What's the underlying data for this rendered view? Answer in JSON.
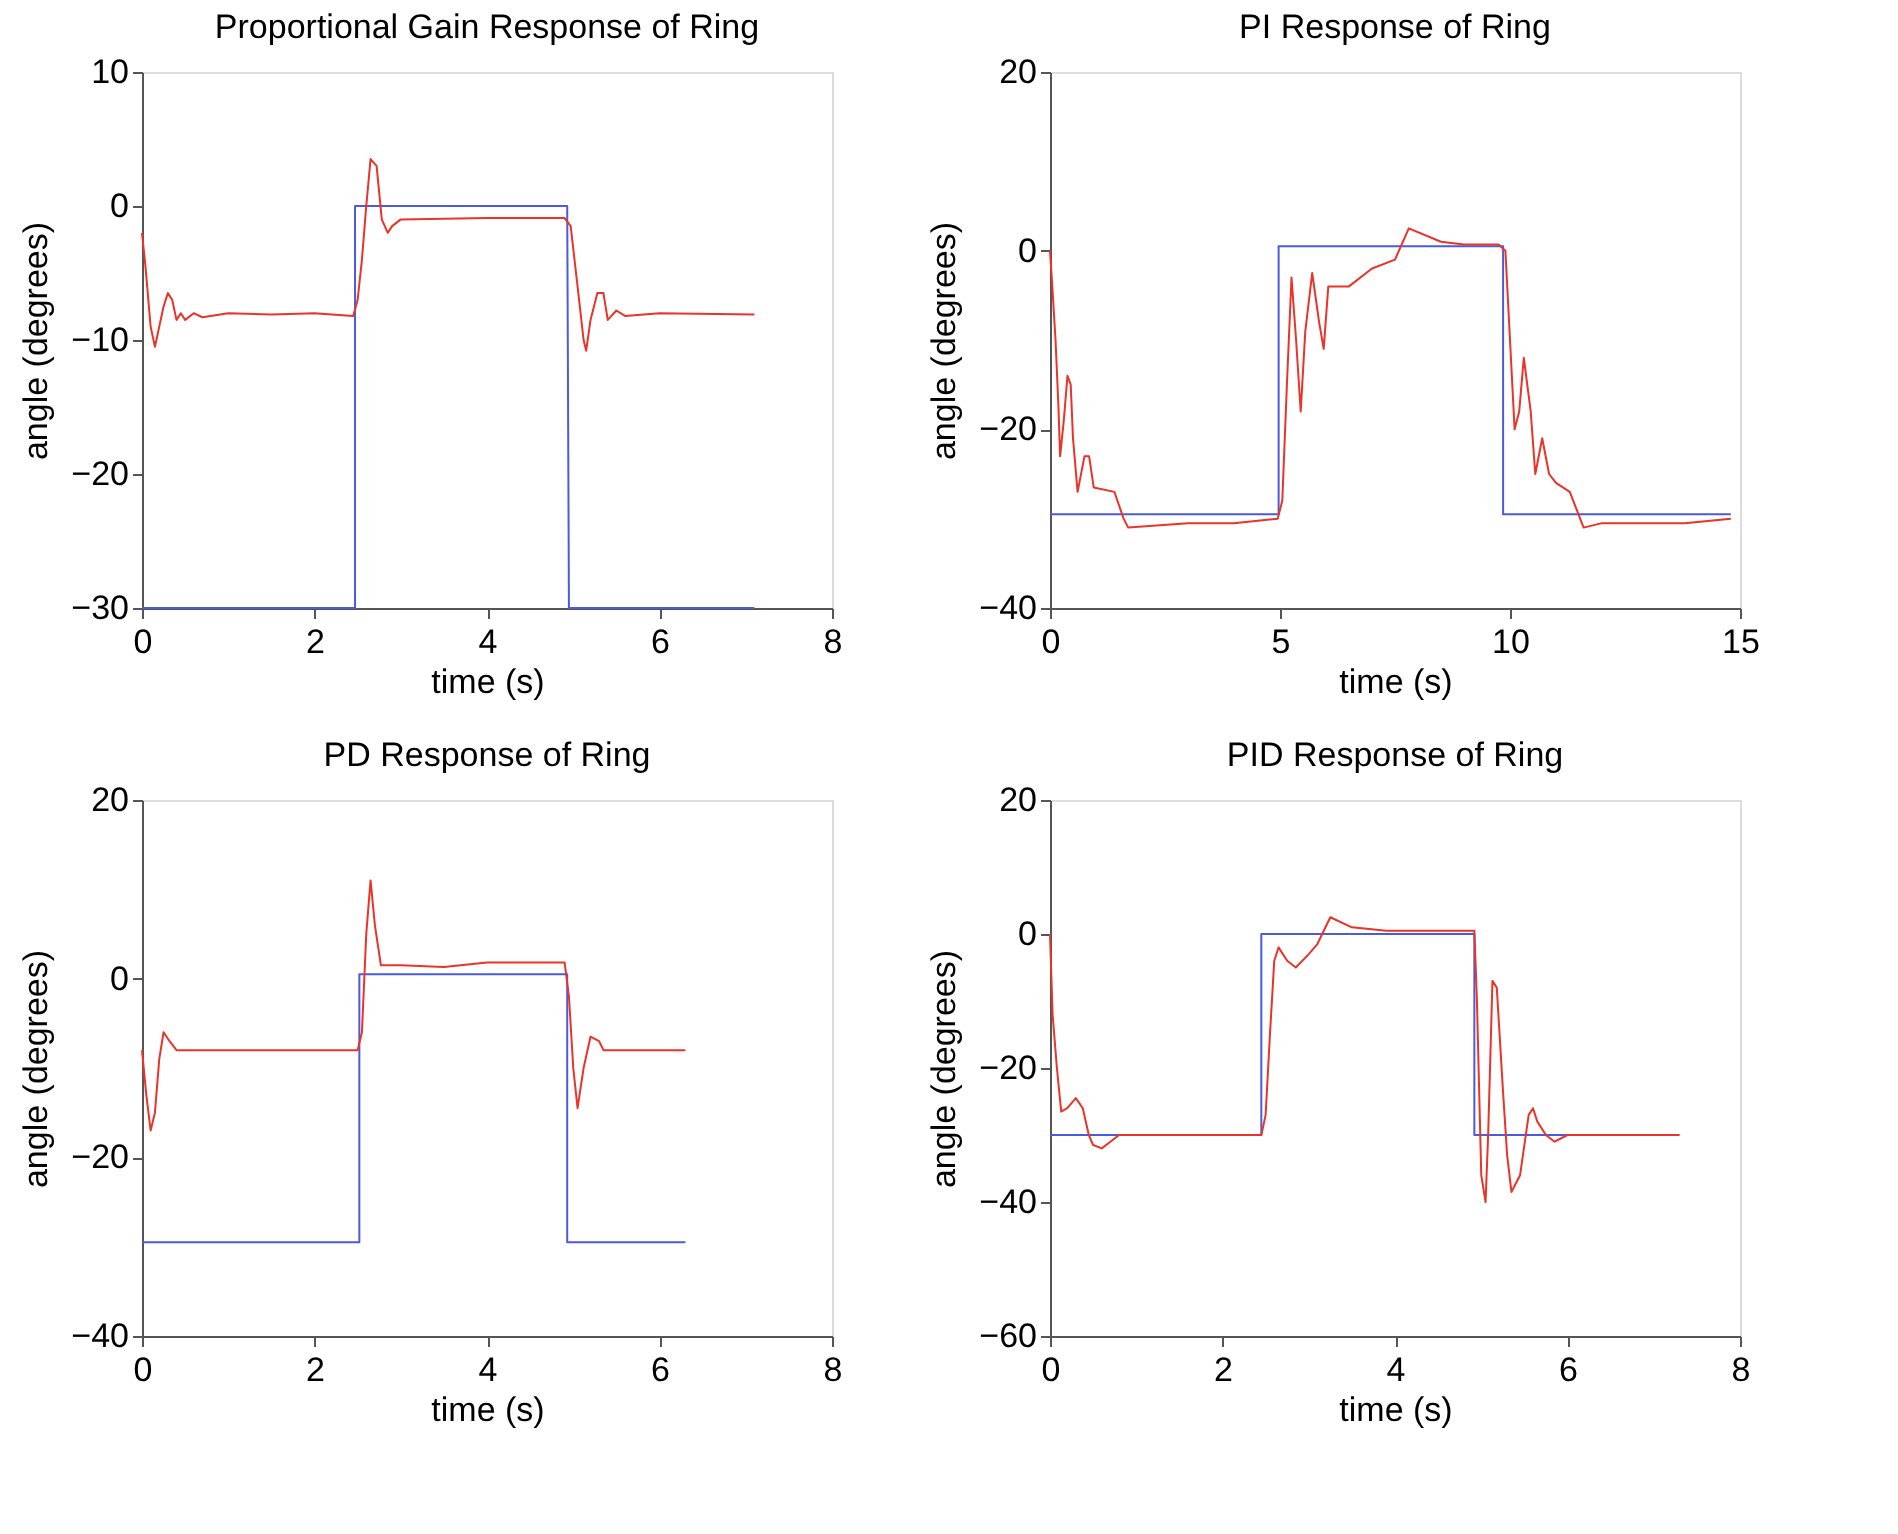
{
  "chart_data": [
    {
      "type": "line",
      "title": "Proportional Gain Response of Ring",
      "xlabel": "time (s)",
      "ylabel": "angle (degrees)",
      "xlim": [
        0,
        8
      ],
      "xticks": [
        0,
        2,
        4,
        6,
        8
      ],
      "ylim": [
        -30,
        10
      ],
      "yticks": [
        -30,
        -20,
        -10,
        0,
        10
      ],
      "grid": false,
      "series": [
        {
          "color": "#4a5bdc",
          "x": [
            0,
            2.47,
            2.47,
            4.93,
            4.95,
            7.1
          ],
          "values": [
            -30,
            -30,
            0,
            0,
            -30,
            -30
          ]
        },
        {
          "color": "#e8342a",
          "x": [
            0,
            0.04,
            0.1,
            0.15,
            0.2,
            0.25,
            0.3,
            0.35,
            0.4,
            0.45,
            0.5,
            0.6,
            0.7,
            1,
            1.5,
            2,
            2.45,
            2.5,
            2.55,
            2.6,
            2.65,
            2.72,
            2.78,
            2.85,
            2.9,
            3,
            4,
            4.9,
            4.97,
            5.05,
            5.12,
            5.15,
            5.2,
            5.28,
            5.35,
            5.4,
            5.5,
            5.6,
            6,
            7.1
          ],
          "values": [
            -2,
            -4.5,
            -9,
            -10.5,
            -9,
            -7.5,
            -6.5,
            -7,
            -8.5,
            -8,
            -8.5,
            -8,
            -8.3,
            -8,
            -8.1,
            -8,
            -8.2,
            -7,
            -4,
            0,
            3.5,
            3,
            -1,
            -2,
            -1.5,
            -1,
            -0.9,
            -0.9,
            -1.5,
            -6,
            -10,
            -10.8,
            -8.5,
            -6.5,
            -6.5,
            -8.5,
            -7.8,
            -8.2,
            -8,
            -8.1
          ]
        }
      ]
    },
    {
      "type": "line",
      "title": "PI Response of Ring",
      "xlabel": "time (s)",
      "ylabel": "angle (degrees)",
      "xlim": [
        0,
        15
      ],
      "xticks": [
        0,
        5,
        10,
        15
      ],
      "ylim": [
        -40,
        20
      ],
      "yticks": [
        -40,
        -20,
        0,
        20
      ],
      "grid": false,
      "series": [
        {
          "color": "#4a5bdc",
          "x": [
            0,
            4.97,
            4.97,
            9.85,
            9.85,
            14.8
          ],
          "values": [
            -29.5,
            -29.5,
            0.5,
            0.5,
            -29.5,
            -29.5
          ]
        },
        {
          "color": "#e8342a",
          "x": [
            0,
            0.05,
            0.12,
            0.18,
            0.22,
            0.3,
            0.38,
            0.45,
            0.5,
            0.6,
            0.75,
            0.85,
            0.95,
            1.4,
            1.6,
            1.7,
            3,
            4,
            4.95,
            5.05,
            5.15,
            5.25,
            5.35,
            5.45,
            5.55,
            5.7,
            5.85,
            5.95,
            6.05,
            6.5,
            7,
            7.5,
            7.8,
            8.5,
            9,
            9.75,
            9.9,
            10,
            10.1,
            10.2,
            10.3,
            10.45,
            10.55,
            10.7,
            10.85,
            11,
            11.3,
            11.6,
            12,
            13.8,
            14.8
          ],
          "values": [
            0,
            -4,
            -10,
            -17,
            -23,
            -19,
            -14,
            -15,
            -21,
            -27,
            -23,
            -23,
            -26.5,
            -27,
            -30,
            -31,
            -30.5,
            -30.5,
            -30,
            -28,
            -15,
            -3,
            -10,
            -18,
            -9,
            -2.5,
            -8,
            -11,
            -4,
            -4,
            -2,
            -1,
            2.5,
            1,
            0.7,
            0.7,
            0,
            -10,
            -20,
            -18,
            -12,
            -18,
            -25,
            -21,
            -25,
            -26,
            -27,
            -31,
            -30.5,
            -30.5,
            -30
          ]
        }
      ]
    },
    {
      "type": "line",
      "title": "PD Response of Ring",
      "xlabel": "time (s)",
      "ylabel": "angle (degrees)",
      "xlim": [
        0,
        8
      ],
      "xticks": [
        0,
        2,
        4,
        6,
        8
      ],
      "ylim": [
        -40,
        20
      ],
      "yticks": [
        -40,
        -20,
        0,
        20
      ],
      "grid": false,
      "series": [
        {
          "color": "#4a5bdc",
          "x": [
            0,
            2.52,
            2.52,
            4.93,
            4.93,
            6.3
          ],
          "values": [
            -29.5,
            -29.5,
            0.5,
            0.5,
            -29.5,
            -29.5
          ]
        },
        {
          "color": "#e8342a",
          "x": [
            0,
            0.05,
            0.1,
            0.15,
            0.2,
            0.25,
            0.32,
            0.4,
            1,
            2.5,
            2.55,
            2.6,
            2.65,
            2.7,
            2.77,
            3,
            3.5,
            4,
            4.9,
            4.95,
            5,
            5.05,
            5.12,
            5.2,
            5.3,
            5.35,
            6.3
          ],
          "values": [
            -8,
            -13,
            -17,
            -15,
            -9,
            -6,
            -7,
            -8,
            -8,
            -8,
            -6,
            5,
            11,
            6,
            1.5,
            1.5,
            1.3,
            1.8,
            1.8,
            -2,
            -10,
            -14.5,
            -10,
            -6.5,
            -7,
            -8,
            -8
          ]
        }
      ]
    },
    {
      "type": "line",
      "title": "PID Response of Ring",
      "xlabel": "time (s)",
      "ylabel": "angle (degrees)",
      "xlim": [
        0,
        8
      ],
      "xticks": [
        0,
        2,
        4,
        6,
        8
      ],
      "ylim": [
        -60,
        20
      ],
      "yticks": [
        -60,
        -40,
        -20,
        0,
        20
      ],
      "grid": false,
      "series": [
        {
          "color": "#4a5bdc",
          "x": [
            0,
            2.45,
            2.45,
            4.92,
            4.92,
            6
          ],
          "values": [
            -30,
            -30,
            0,
            0,
            -30,
            -30
          ]
        },
        {
          "color": "#e8342a",
          "x": [
            0,
            0.03,
            0.08,
            0.13,
            0.2,
            0.3,
            0.38,
            0.45,
            0.5,
            0.6,
            0.7,
            0.8,
            2.45,
            2.5,
            2.55,
            2.6,
            2.65,
            2.75,
            2.85,
            3,
            3.1,
            3.25,
            3.5,
            3.9,
            4.92,
            4.95,
            5.0,
            5.05,
            5.08,
            5.13,
            5.18,
            5.25,
            5.3,
            5.35,
            5.45,
            5.55,
            5.6,
            5.65,
            5.75,
            5.85,
            6,
            7.3
          ],
          "values": [
            0,
            -12,
            -20,
            -26.5,
            -26,
            -24.5,
            -26,
            -30,
            -31.5,
            -32,
            -31,
            -30,
            -30,
            -27,
            -15,
            -4,
            -2,
            -4,
            -5,
            -3,
            -1.5,
            2.5,
            1,
            0.5,
            0.5,
            -10,
            -36,
            -40,
            -30,
            -7,
            -8,
            -23,
            -33,
            -38.5,
            -36,
            -27,
            -26,
            -28,
            -30,
            -31,
            -30,
            -30
          ]
        }
      ]
    }
  ]
}
